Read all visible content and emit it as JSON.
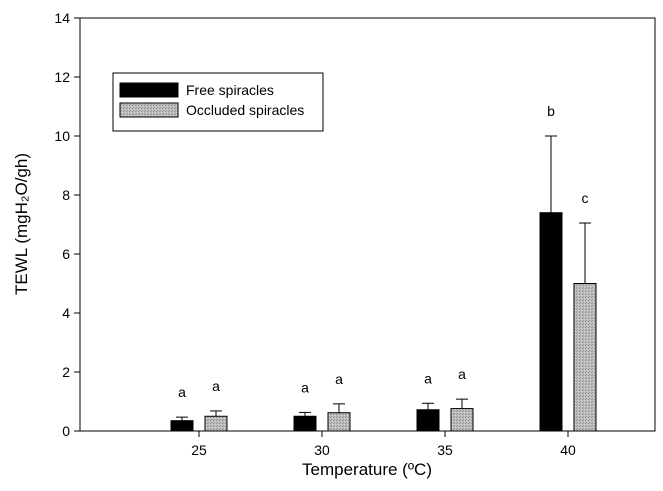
{
  "chart_data": {
    "type": "bar",
    "categories": [
      "25",
      "30",
      "35",
      "40"
    ],
    "xlabel": "Temperature (ºC)",
    "ylabel": "TEWL (mgH₂O/gh)",
    "ylim": [
      0,
      14
    ],
    "yticks": [
      "0",
      "2",
      "4",
      "6",
      "8",
      "10",
      "12",
      "14"
    ],
    "grid": false,
    "legend_position": "top-left",
    "series": [
      {
        "name": "Free spiracles",
        "color": "#000000",
        "values": [
          0.35,
          0.5,
          0.72,
          7.4
        ],
        "errors": [
          0.12,
          0.13,
          0.22,
          2.6
        ],
        "labels": [
          "a",
          "a",
          "a",
          "b"
        ]
      },
      {
        "name": "Occluded spiracles",
        "color": "#b4b4b4",
        "values": [
          0.5,
          0.62,
          0.76,
          5.0
        ],
        "errors": [
          0.18,
          0.3,
          0.32,
          2.05
        ],
        "labels": [
          "a",
          "a",
          "a",
          "c"
        ]
      }
    ]
  }
}
